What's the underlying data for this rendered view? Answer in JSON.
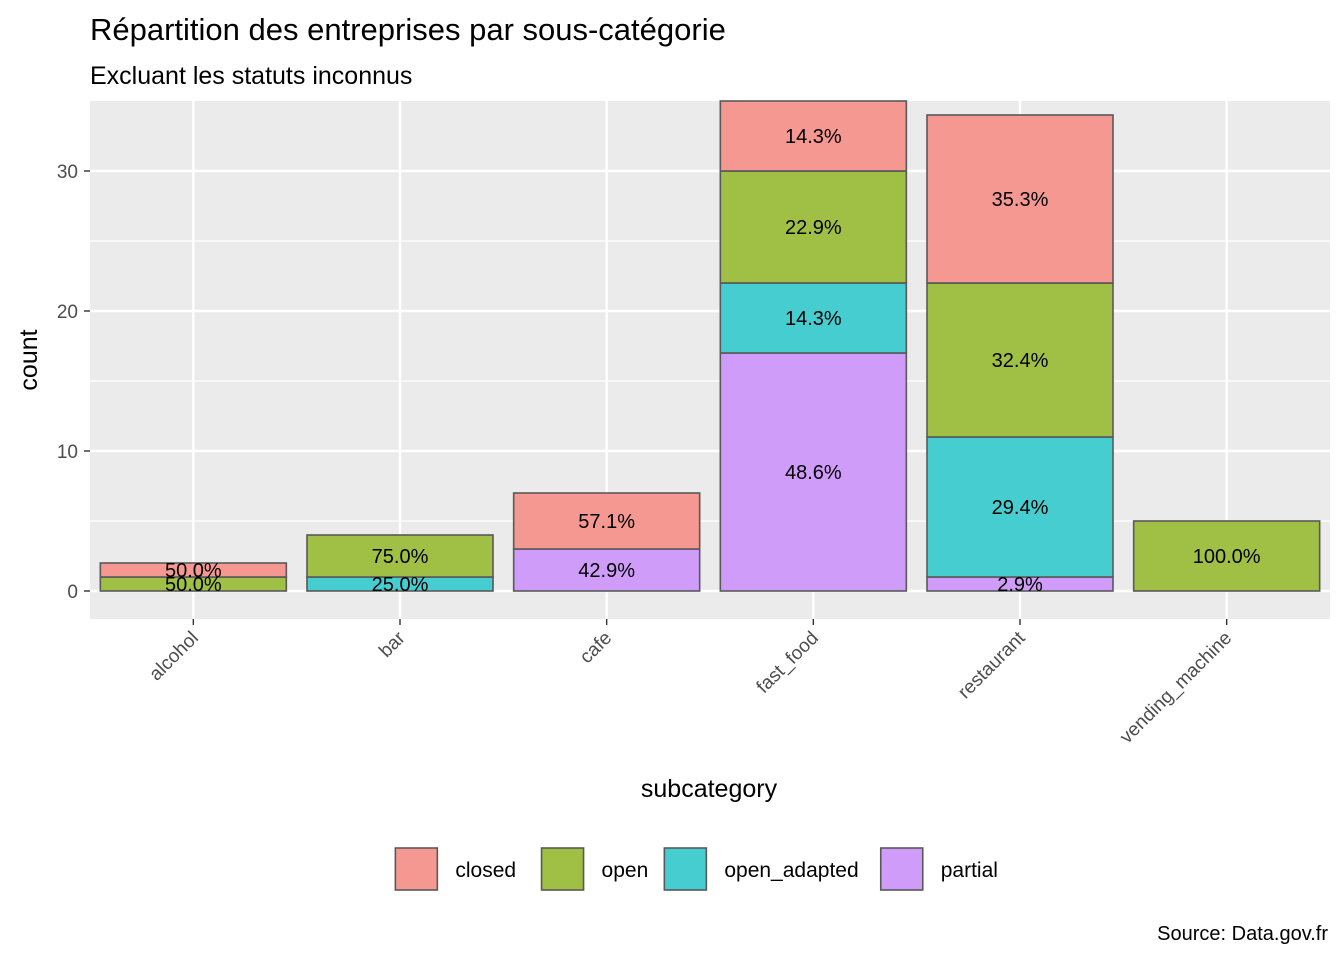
{
  "chart_data": {
    "type": "bar",
    "stacked": true,
    "title": "Répartition des entreprises par sous-catégorie",
    "subtitle": "Excluant les statuts inconnus",
    "xlabel": "subcategory",
    "ylabel": "count",
    "caption": "Source: Data.gov.fr",
    "ylim": [
      -2,
      35
    ],
    "yticks": [
      0,
      10,
      20,
      30
    ],
    "grid": true,
    "legend_position": "bottom",
    "categories": [
      "alcohol",
      "bar",
      "cafe",
      "fast_food",
      "restaurant",
      "vending_machine"
    ],
    "series": [
      {
        "name": "partial",
        "color": "#D09CF9",
        "values": [
          0,
          0,
          3,
          17,
          1,
          0
        ],
        "labels": [
          "",
          "",
          "42.9%",
          "48.6%",
          "2.9%",
          ""
        ]
      },
      {
        "name": "open_adapted",
        "color": "#46CDD0",
        "values": [
          0,
          1,
          0,
          5,
          10,
          0
        ],
        "labels": [
          "",
          "25.0%",
          "",
          "14.3%",
          "29.4%",
          ""
        ]
      },
      {
        "name": "open",
        "color": "#A0BF45",
        "values": [
          1,
          3,
          0,
          8,
          11,
          5
        ],
        "labels": [
          "50.0%",
          "75.0%",
          "",
          "22.9%",
          "32.4%",
          "100.0%"
        ]
      },
      {
        "name": "closed",
        "color": "#F49891",
        "values": [
          1,
          0,
          4,
          5,
          12,
          0
        ],
        "labels": [
          "50.0%",
          "",
          "57.1%",
          "14.3%",
          "35.3%",
          ""
        ]
      }
    ],
    "legend_order": [
      "closed",
      "open",
      "open_adapted",
      "partial"
    ],
    "colors": {
      "panel": "#EBEBEB",
      "grid": "#FFFFFF",
      "bar_outline": "#595959"
    }
  }
}
